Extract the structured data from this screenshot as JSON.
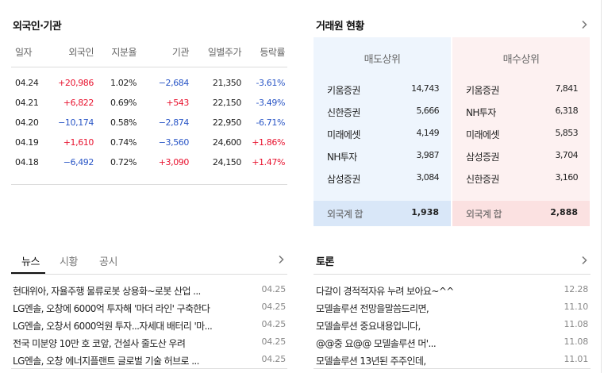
{
  "investor": {
    "title": "외국인·기관",
    "headers": [
      "일자",
      "외국인",
      "지분율",
      "기관",
      "일별주가",
      "등락률"
    ],
    "rows": [
      {
        "date": "04.24",
        "foreign": "+20,986",
        "share": "1.02%",
        "inst": "−2,684",
        "price": "21,350",
        "change": "-3.61%"
      },
      {
        "date": "04.21",
        "foreign": "+6,822",
        "share": "0.69%",
        "inst": "+543",
        "price": "22,150",
        "change": "-3.49%"
      },
      {
        "date": "04.20",
        "foreign": "−10,174",
        "share": "0.58%",
        "inst": "−2,874",
        "price": "22,950",
        "change": "-6.71%"
      },
      {
        "date": "04.19",
        "foreign": "+1,610",
        "share": "0.74%",
        "inst": "−3,560",
        "price": "24,600",
        "change": "+1.86%"
      },
      {
        "date": "04.18",
        "foreign": "−6,492",
        "share": "0.72%",
        "inst": "+3,090",
        "price": "24,150",
        "change": "+1.47%"
      }
    ],
    "up_color": "#e8132f",
    "down_color": "#2a56c6"
  },
  "broker": {
    "title": "거래원 현황",
    "sell_header": "매도상위",
    "buy_header": "매수상위",
    "sell": [
      {
        "name": "키움증권",
        "value": "14,743"
      },
      {
        "name": "신한증권",
        "value": "5,666"
      },
      {
        "name": "미래에셋",
        "value": "4,149"
      },
      {
        "name": "NH투자",
        "value": "3,987"
      },
      {
        "name": "삼성증권",
        "value": "3,084"
      }
    ],
    "buy": [
      {
        "name": "키움증권",
        "value": "7,841"
      },
      {
        "name": "NH투자",
        "value": "6,318"
      },
      {
        "name": "미래에셋",
        "value": "5,853"
      },
      {
        "name": "삼성증권",
        "value": "3,704"
      },
      {
        "name": "신한증권",
        "value": "3,160"
      }
    ],
    "sell_total_label": "외국계 합",
    "sell_total": "1,938",
    "buy_total_label": "외국계 합",
    "buy_total": "2,888",
    "sell_bg": "#eef5fd",
    "buy_bg": "#fdf1f1"
  },
  "news": {
    "tabs": [
      "뉴스",
      "시황",
      "공시"
    ],
    "active_tab": "뉴스",
    "items": [
      {
        "title": "현대위아, 자율주행 물류로봇 상용화~로봇 산업 ...",
        "date": "04.25"
      },
      {
        "title": "LG엔솔, 오창에 6000억 투자해 '마더 라인' 구축한다",
        "date": "04.25"
      },
      {
        "title": "LG엔솔, 오창서 6000억원 투자...자세대 배터리 '마...",
        "date": "04.25"
      },
      {
        "title": "전국 미분양 10만 호 코앞, 건설사 줄도산 우려",
        "date": "04.25"
      },
      {
        "title": "LG엔솔, 오창 에너지플랜트 글로벌 기술 허브로 ...",
        "date": "04.25"
      }
    ]
  },
  "forum": {
    "title": "토론",
    "items": [
      {
        "title": "다갈이 경적적자유 누려 보아요~^^",
        "date": "12.28"
      },
      {
        "title": "모델솔루션 전망을말씀드리면,",
        "date": "11.10"
      },
      {
        "title": "모델솔루션 중요내용입니다,",
        "date": "11.08"
      },
      {
        "title": "@@중 요@@ 모델솔루션 머'...",
        "date": "11.08"
      },
      {
        "title": "모델솔루션 13년된 주주인데,",
        "date": "11.01"
      }
    ]
  }
}
